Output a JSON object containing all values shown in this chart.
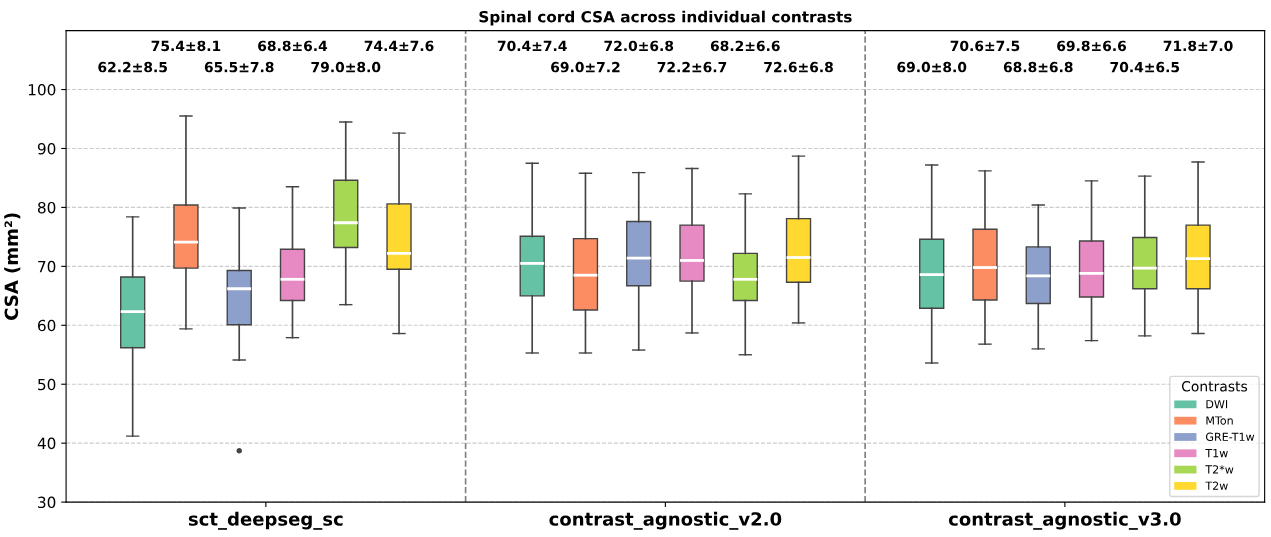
{
  "chart_data": {
    "type": "box",
    "title": "Spinal cord CSA across individual contrasts",
    "ylabel": "CSA (mm²)",
    "legend_title": "Contrasts",
    "categories": [
      "sct_deepseg_sc",
      "contrast_agnostic_v2.0",
      "contrast_agnostic_v3.0"
    ],
    "series": [
      {
        "name": "DWI",
        "color": "#66c2a5",
        "boxes": [
          {
            "low": 41.2,
            "q1": 56.2,
            "median": 62.3,
            "q3": 68.2,
            "high": 78.4
          },
          {
            "low": 55.3,
            "q1": 65.0,
            "median": 70.5,
            "q3": 75.1,
            "high": 87.5
          },
          {
            "low": 53.6,
            "q1": 62.9,
            "median": 68.6,
            "q3": 74.6,
            "high": 87.2
          }
        ]
      },
      {
        "name": "MTon",
        "color": "#fc8d62",
        "boxes": [
          {
            "low": 59.4,
            "q1": 69.7,
            "median": 74.1,
            "q3": 80.4,
            "high": 95.5
          },
          {
            "low": 55.3,
            "q1": 62.6,
            "median": 68.5,
            "q3": 74.7,
            "high": 85.8
          },
          {
            "low": 56.8,
            "q1": 64.3,
            "median": 69.8,
            "q3": 76.3,
            "high": 86.2
          }
        ]
      },
      {
        "name": "GRE-T1w",
        "color": "#8da0cb",
        "boxes": [
          {
            "low": 54.1,
            "q1": 60.1,
            "median": 66.2,
            "q3": 69.3,
            "high": 79.9,
            "outliers": [
              38.7
            ]
          },
          {
            "low": 55.8,
            "q1": 66.7,
            "median": 71.4,
            "q3": 77.6,
            "high": 85.9
          },
          {
            "low": 56.0,
            "q1": 63.7,
            "median": 68.4,
            "q3": 73.3,
            "high": 80.4
          }
        ]
      },
      {
        "name": "T1w",
        "color": "#e78ac3",
        "boxes": [
          {
            "low": 57.9,
            "q1": 64.2,
            "median": 67.8,
            "q3": 72.9,
            "high": 83.5
          },
          {
            "low": 58.7,
            "q1": 67.5,
            "median": 71.0,
            "q3": 77.0,
            "high": 86.6
          },
          {
            "low": 57.4,
            "q1": 64.8,
            "median": 68.8,
            "q3": 74.3,
            "high": 84.5
          }
        ]
      },
      {
        "name": "T2*w",
        "color": "#a6d854",
        "boxes": [
          {
            "low": 63.5,
            "q1": 73.2,
            "median": 77.4,
            "q3": 84.6,
            "high": 94.5
          },
          {
            "low": 55.0,
            "q1": 64.2,
            "median": 67.8,
            "q3": 72.2,
            "high": 82.3
          },
          {
            "low": 58.2,
            "q1": 66.2,
            "median": 69.7,
            "q3": 74.9,
            "high": 85.3
          }
        ]
      },
      {
        "name": "T2w",
        "color": "#ffd92f",
        "boxes": [
          {
            "low": 58.6,
            "q1": 69.5,
            "median": 72.2,
            "q3": 80.6,
            "high": 92.6
          },
          {
            "low": 60.4,
            "q1": 67.3,
            "median": 71.5,
            "q3": 78.1,
            "high": 88.7
          },
          {
            "low": 58.6,
            "q1": 66.2,
            "median": 71.3,
            "q3": 77.0,
            "high": 87.7
          }
        ]
      }
    ],
    "annotations": [
      "62.2±8.5",
      "75.4±8.1",
      "65.5±7.8",
      "68.8±6.4",
      "79.0±8.0",
      "74.4±7.6",
      "70.4±7.4",
      "69.0±7.2",
      "72.0±6.8",
      "72.2±6.7",
      "68.2±6.6",
      "72.6±6.8",
      "69.0±8.0",
      "70.6±7.5",
      "68.8±6.8",
      "69.8±6.6",
      "70.4±6.5",
      "71.8±7.0"
    ],
    "ylim": [
      30,
      110
    ],
    "yticks": [
      30,
      40,
      50,
      60,
      70,
      80,
      90,
      100
    ],
    "grid": "y",
    "legend": "bottom right"
  }
}
